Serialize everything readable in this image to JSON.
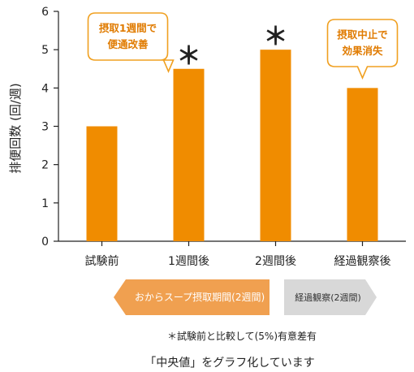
{
  "chart_data": {
    "type": "bar",
    "categories": [
      "試験前",
      "1週間後",
      "2週間後",
      "経過観察後"
    ],
    "values": [
      3.0,
      4.5,
      5.0,
      4.0
    ],
    "ylabel": "排便回数 (回/週)",
    "ylim": [
      0,
      6
    ],
    "yticks": [
      0,
      1,
      2,
      3,
      4,
      5,
      6
    ],
    "grid": false,
    "bar_color": "#f08c00",
    "significance_marks": [
      {
        "category": "1週間後",
        "symbol": "＊"
      },
      {
        "category": "2週間後",
        "symbol": "＊"
      }
    ],
    "callouts": [
      {
        "category": "1週間後",
        "lines": [
          "摂取1週間で",
          "便通改善"
        ]
      },
      {
        "category": "経過観察後",
        "lines": [
          "摂取中止で",
          "効果消失"
        ]
      }
    ]
  },
  "periods": {
    "intake": {
      "label": "おからスープ摂取期間(2週間)",
      "color": "#f0a050"
    },
    "observation": {
      "label": "経過観察(2週間)",
      "color": "#d8d8d8"
    }
  },
  "note": "＊試験前と比較して(5%)有意差有",
  "caption": "「中央値」をグラフ化しています"
}
